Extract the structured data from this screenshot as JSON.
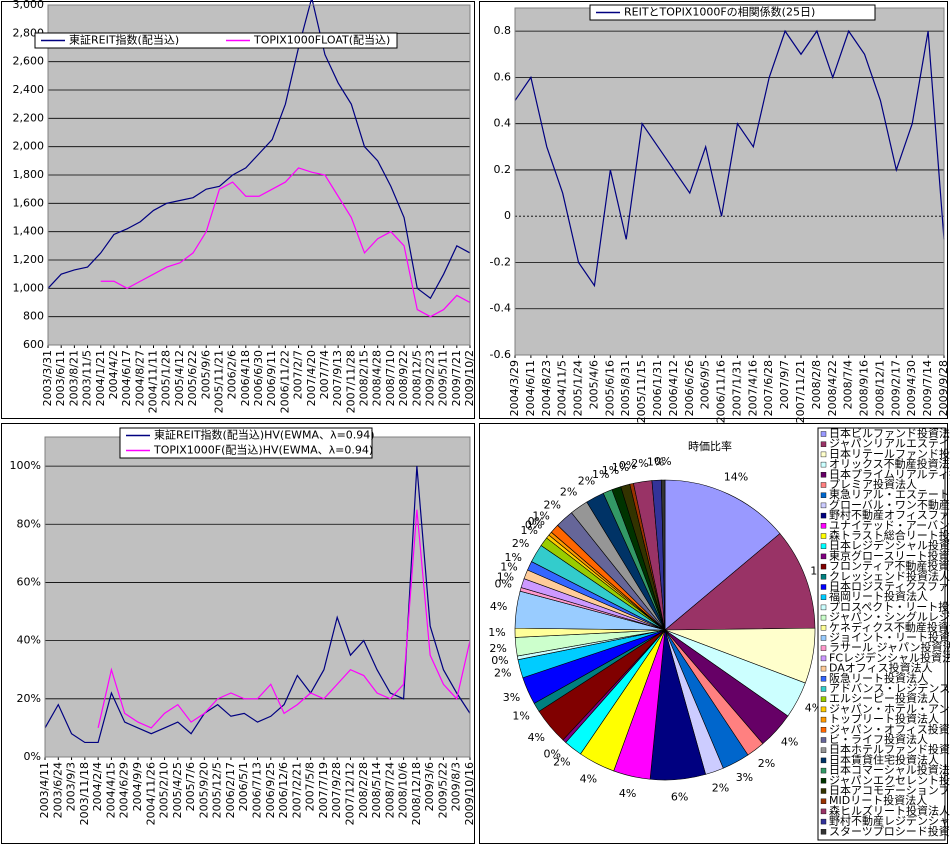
{
  "chart_data": [
    {
      "type": "line",
      "categories": [
        "2003/3/31",
        "2003/6/11",
        "2003/8/21",
        "2003/11/5",
        "2004/1/21",
        "2004/4/2",
        "2004/6/17",
        "2004/8/27",
        "2004/11/11",
        "2005/1/28",
        "2005/4/12",
        "2005/6/22",
        "2005/9/6",
        "2005/11/21",
        "2006/2/6",
        "2006/4/18",
        "2006/6/30",
        "2006/9/11",
        "2006/11/22",
        "2007/2/7",
        "2007/4/20",
        "2007/7/4",
        "2007/9/13",
        "2007/11/28",
        "2008/2/15",
        "2008/4/28",
        "2008/7/10",
        "2008/9/22",
        "2008/12/5",
        "2009/2/23",
        "2009/5/11",
        "2009/7/21",
        "2009/10/2"
      ],
      "series": [
        {
          "name": "東証REIT指数(配当込)",
          "color": "#000080",
          "values": [
            1000,
            1100,
            1130,
            1150,
            1250,
            1380,
            1420,
            1470,
            1550,
            1600,
            1620,
            1640,
            1700,
            1720,
            1800,
            1850,
            1950,
            2050,
            2300,
            2700,
            3050,
            2650,
            2450,
            2300,
            2000,
            1900,
            1720,
            1500,
            1000,
            930,
            1100,
            1300,
            1250
          ]
        },
        {
          "name": "TOPIX1000FLOAT(配当込)",
          "color": "#FF00FF",
          "values": [
            null,
            null,
            null,
            null,
            1050,
            1050,
            1000,
            1050,
            1100,
            1150,
            1180,
            1250,
            1400,
            1700,
            1750,
            1650,
            1650,
            1700,
            1750,
            1850,
            1820,
            1800,
            1650,
            1500,
            1250,
            1350,
            1400,
            1300,
            850,
            800,
            850,
            950,
            900
          ]
        }
      ],
      "ylim": [
        600,
        3000
      ],
      "yticks": [
        600,
        800,
        {
          "value": 1000,
          "label": "1,000"
        },
        {
          "value": 1200,
          "label": "1,200"
        },
        {
          "value": 1400,
          "label": "1,400"
        },
        {
          "value": 1600,
          "label": "1,600"
        },
        {
          "value": 1800,
          "label": "1,800"
        },
        {
          "value": 2000,
          "label": "2,000"
        },
        {
          "value": 2200,
          "label": "2,200"
        },
        {
          "value": 2400,
          "label": "2,400"
        },
        {
          "value": 2600,
          "label": "2,600"
        },
        {
          "value": 2800,
          "label": "2,800"
        },
        {
          "value": 3000,
          "label": "3,000"
        }
      ],
      "grid": true
    },
    {
      "type": "line",
      "categories": [
        "2004/3/29",
        "2004/6/11",
        "2004/8/23",
        "2004/11/5",
        "2005/1/24",
        "2005/4/6",
        "2005/6/16",
        "2005/8/31",
        "2005/11/15",
        "2006/1/31",
        "2006/4/12",
        "2006/6/26",
        "2006/9/5",
        "2006/11/16",
        "2007/1/31",
        "2007/4/16",
        "2007/6/28",
        "2007/9/7",
        "2007/11/21",
        "2008/2/8",
        "2008/4/22",
        "2008/7/4",
        "2008/9/16",
        "2008/12/1",
        "2009/2/17",
        "2009/4/30",
        "2009/7/14",
        "2009/9/28"
      ],
      "series": [
        {
          "name": "REITとTOPIX1000Fの相関係数(25日)",
          "color": "#000080",
          "values": [
            0.5,
            0.6,
            0.3,
            0.1,
            -0.2,
            -0.3,
            0.2,
            -0.1,
            0.4,
            0.3,
            0.2,
            0.1,
            0.3,
            0.0,
            0.4,
            0.3,
            0.6,
            0.8,
            0.7,
            0.8,
            0.6,
            0.8,
            0.7,
            0.5,
            0.2,
            0.4,
            0.8,
            -0.1
          ]
        }
      ],
      "ylim": [
        -0.6,
        0.9
      ],
      "yticks": [
        -0.6,
        -0.4,
        -0.2,
        0,
        0.2,
        0.4,
        0.6,
        0.8
      ],
      "grid": true
    },
    {
      "type": "line",
      "categories": [
        "2003/4/11",
        "2003/6/24",
        "2003/9/3",
        "2003/11/18",
        "2004/2/4",
        "2004/4/15",
        "2004/6/29",
        "2004/9/9",
        "2004/11/26",
        "2005/2/10",
        "2005/4/25",
        "2005/7/6",
        "2005/9/20",
        "2005/12/5",
        "2006/2/17",
        "2006/5/1",
        "2006/7/13",
        "2006/9/25",
        "2006/12/6",
        "2007/2/21",
        "2007/5/8",
        "2007/7/19",
        "2007/9/28",
        "2007/12/12",
        "2008/2/28",
        "2008/5/14",
        "2008/7/24",
        "2008/10/6",
        "2008/12/18",
        "2009/3/6",
        "2009/5/22",
        "2009/8/3",
        "2009/10/16"
      ],
      "series": [
        {
          "name": "東証REIT指数(配当込)HV(EWMA、λ=0.94)",
          "color": "#000080",
          "values": [
            10,
            18,
            8,
            5,
            5,
            22,
            12,
            10,
            8,
            10,
            12,
            8,
            15,
            18,
            14,
            15,
            12,
            14,
            18,
            28,
            22,
            30,
            48,
            35,
            40,
            30,
            22,
            20,
            100,
            45,
            30,
            22,
            15
          ]
        },
        {
          "name": "TOPIX1000F(配当込)HV(EWMA、λ=0.94)",
          "color": "#FF00FF",
          "values": [
            null,
            null,
            null,
            null,
            10,
            30,
            15,
            12,
            10,
            15,
            18,
            12,
            15,
            20,
            22,
            20,
            20,
            25,
            15,
            18,
            22,
            20,
            25,
            30,
            28,
            22,
            20,
            25,
            85,
            35,
            25,
            20,
            40
          ]
        }
      ],
      "ylim": [
        0,
        110
      ],
      "yticks": [
        {
          "value": 0,
          "label": "0%"
        },
        {
          "value": 20,
          "label": "20%"
        },
        {
          "value": 40,
          "label": "40%"
        },
        {
          "value": 60,
          "label": "60%"
        },
        {
          "value": 80,
          "label": "80%"
        },
        {
          "value": 100,
          "label": "100%"
        }
      ],
      "grid": true
    },
    {
      "type": "pie",
      "title": "時価比率",
      "categories": [
        "日本ビルファンド投資法人",
        "ジャパンリアルエステイト投資法人",
        "日本リテールファンド投資法人",
        "オリックス不動産投資法人",
        "日本プライムリアルティ投資法人",
        "プレミア投資法人",
        "東急リアル・エステート投資法人",
        "グローバル・ワン不動産投資法人",
        "野村不動産オフィスファンド投資法人",
        "ユナイテッド・アーバン投資法人",
        "森トラスト総合リート投資法人",
        "日本レジデンシャル投資法人",
        "東京グロースリート投資法人",
        "フロンティア不動産投資法人",
        "クレッシェンド投資法人",
        "日本ロジスティクスファンド投資法人",
        "福岡リート投資法人",
        "プロスペクト・リート投資法人",
        "ジャパン・シングルレジデンス投資法人",
        "ケネディクス不動産投資法人",
        "ジョイント・リート投資法人",
        "ラサール ジャパン投資法人",
        "FCレジデンシャル投資法人",
        "DAオフィス投資法人",
        "阪急リート投資法人",
        "アドバンス・レジデンス投資法人",
        "エルシーピー投資法人",
        "ジャパン・ホテル・アンド・リゾート投資法人",
        "トップリート投資法人",
        "ジャパン・オフィス投資法人",
        "ビ・ライフ投資法人",
        "日本ホテルファンド投資法人",
        "日本賃貸住宅投資法人",
        "日本コマーシャル投資法人",
        "ジャパンエクセレント投資法人",
        "日本アコモデーションファンド投資法人",
        "MIDリート投資法人",
        "森ヒルズリート投資法人",
        "野村不動産レジデンシャル投資法人",
        "スターツプロシード投資法人"
      ],
      "values": [
        14,
        11,
        6,
        4,
        4,
        2,
        3,
        2,
        6,
        4,
        4,
        2,
        0.4,
        4,
        1,
        3,
        2,
        0.4,
        2,
        1,
        4,
        0.4,
        1,
        1,
        1,
        2,
        1,
        0.4,
        0.4,
        1,
        2,
        2,
        2,
        1,
        1,
        1,
        0.4,
        2,
        1,
        0.4
      ],
      "value_labels": [
        "14%",
        "11%",
        "6%",
        "4%",
        "4%",
        "2%",
        "3%",
        "2%",
        "6%",
        "4%",
        "4%",
        "2%",
        "0%",
        "4%",
        "1%",
        "3%",
        "2%",
        "0%",
        "2%",
        "1%",
        "4%",
        "0%",
        "1%",
        "1%",
        "1%",
        "2%",
        "1%",
        "0%",
        "0%",
        "1%",
        "2%",
        "2%",
        "2%",
        "1%",
        "1%",
        "1%",
        "0%",
        "2%",
        "1%",
        "0%"
      ],
      "colors": [
        "#9999FF",
        "#993366",
        "#FFFFCC",
        "#CCFFFF",
        "#660066",
        "#FF8080",
        "#0066CC",
        "#CCCCFF",
        "#000080",
        "#FF00FF",
        "#FFFF00",
        "#00FFFF",
        "#800080",
        "#800000",
        "#008080",
        "#0000FF",
        "#00CCFF",
        "#CCFFFF",
        "#CCFFCC",
        "#FFFF99",
        "#99CCFF",
        "#FF99CC",
        "#CC99FF",
        "#FFCC99",
        "#3366FF",
        "#33CCCC",
        "#99CC00",
        "#FFCC00",
        "#FF9900",
        "#FF6600",
        "#666699",
        "#969696",
        "#003366",
        "#339966",
        "#003300",
        "#333300",
        "#993300",
        "#993366",
        "#333399",
        "#333333"
      ]
    }
  ]
}
